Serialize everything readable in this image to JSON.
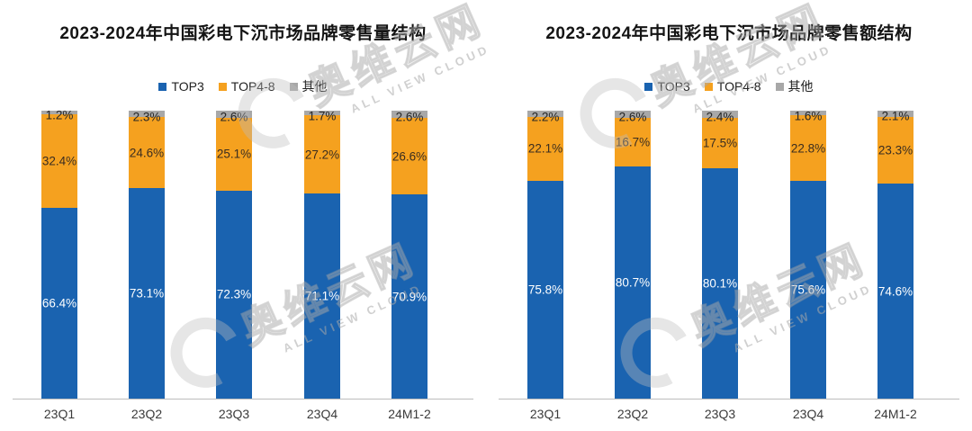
{
  "page": {
    "background": "#ffffff"
  },
  "watermark": {
    "cjk": "奥维云网",
    "en": "ALL VIEW CLOUD"
  },
  "chart_data": [
    {
      "type": "bar",
      "subtype": "100%-stacked-column",
      "title": "2023-2024年中国彩电下沉市场品牌零售量结构",
      "categories": [
        "23Q1",
        "23Q2",
        "23Q3",
        "23Q4",
        "24M1-2"
      ],
      "series": [
        {
          "name": "TOP3",
          "color": "#1a63b0",
          "values": [
            66.4,
            73.1,
            72.3,
            71.1,
            70.9
          ]
        },
        {
          "name": "TOP4-8",
          "color": "#f5a11f",
          "values": [
            32.4,
            24.6,
            25.1,
            27.2,
            26.6
          ]
        },
        {
          "name": "其他",
          "color": "#a8a8a8",
          "values": [
            1.2,
            2.3,
            2.6,
            1.7,
            2.6
          ]
        }
      ],
      "unit": "%",
      "ylim": [
        0,
        100
      ],
      "grid": false,
      "legend_position": "top",
      "value_labels": true
    },
    {
      "type": "bar",
      "subtype": "100%-stacked-column",
      "title": "2023-2024年中国彩电下沉市场品牌零售额结构",
      "categories": [
        "23Q1",
        "23Q2",
        "23Q3",
        "23Q4",
        "24M1-2"
      ],
      "series": [
        {
          "name": "TOP3",
          "color": "#1a63b0",
          "values": [
            75.8,
            80.7,
            80.1,
            75.6,
            74.6
          ]
        },
        {
          "name": "TOP4-8",
          "color": "#f5a11f",
          "values": [
            22.1,
            16.7,
            17.5,
            22.8,
            23.3
          ]
        },
        {
          "name": "其他",
          "color": "#a8a8a8",
          "values": [
            2.2,
            2.6,
            2.4,
            1.6,
            2.1
          ]
        }
      ],
      "unit": "%",
      "ylim": [
        0,
        100
      ],
      "grid": false,
      "legend_position": "top",
      "value_labels": true
    }
  ]
}
